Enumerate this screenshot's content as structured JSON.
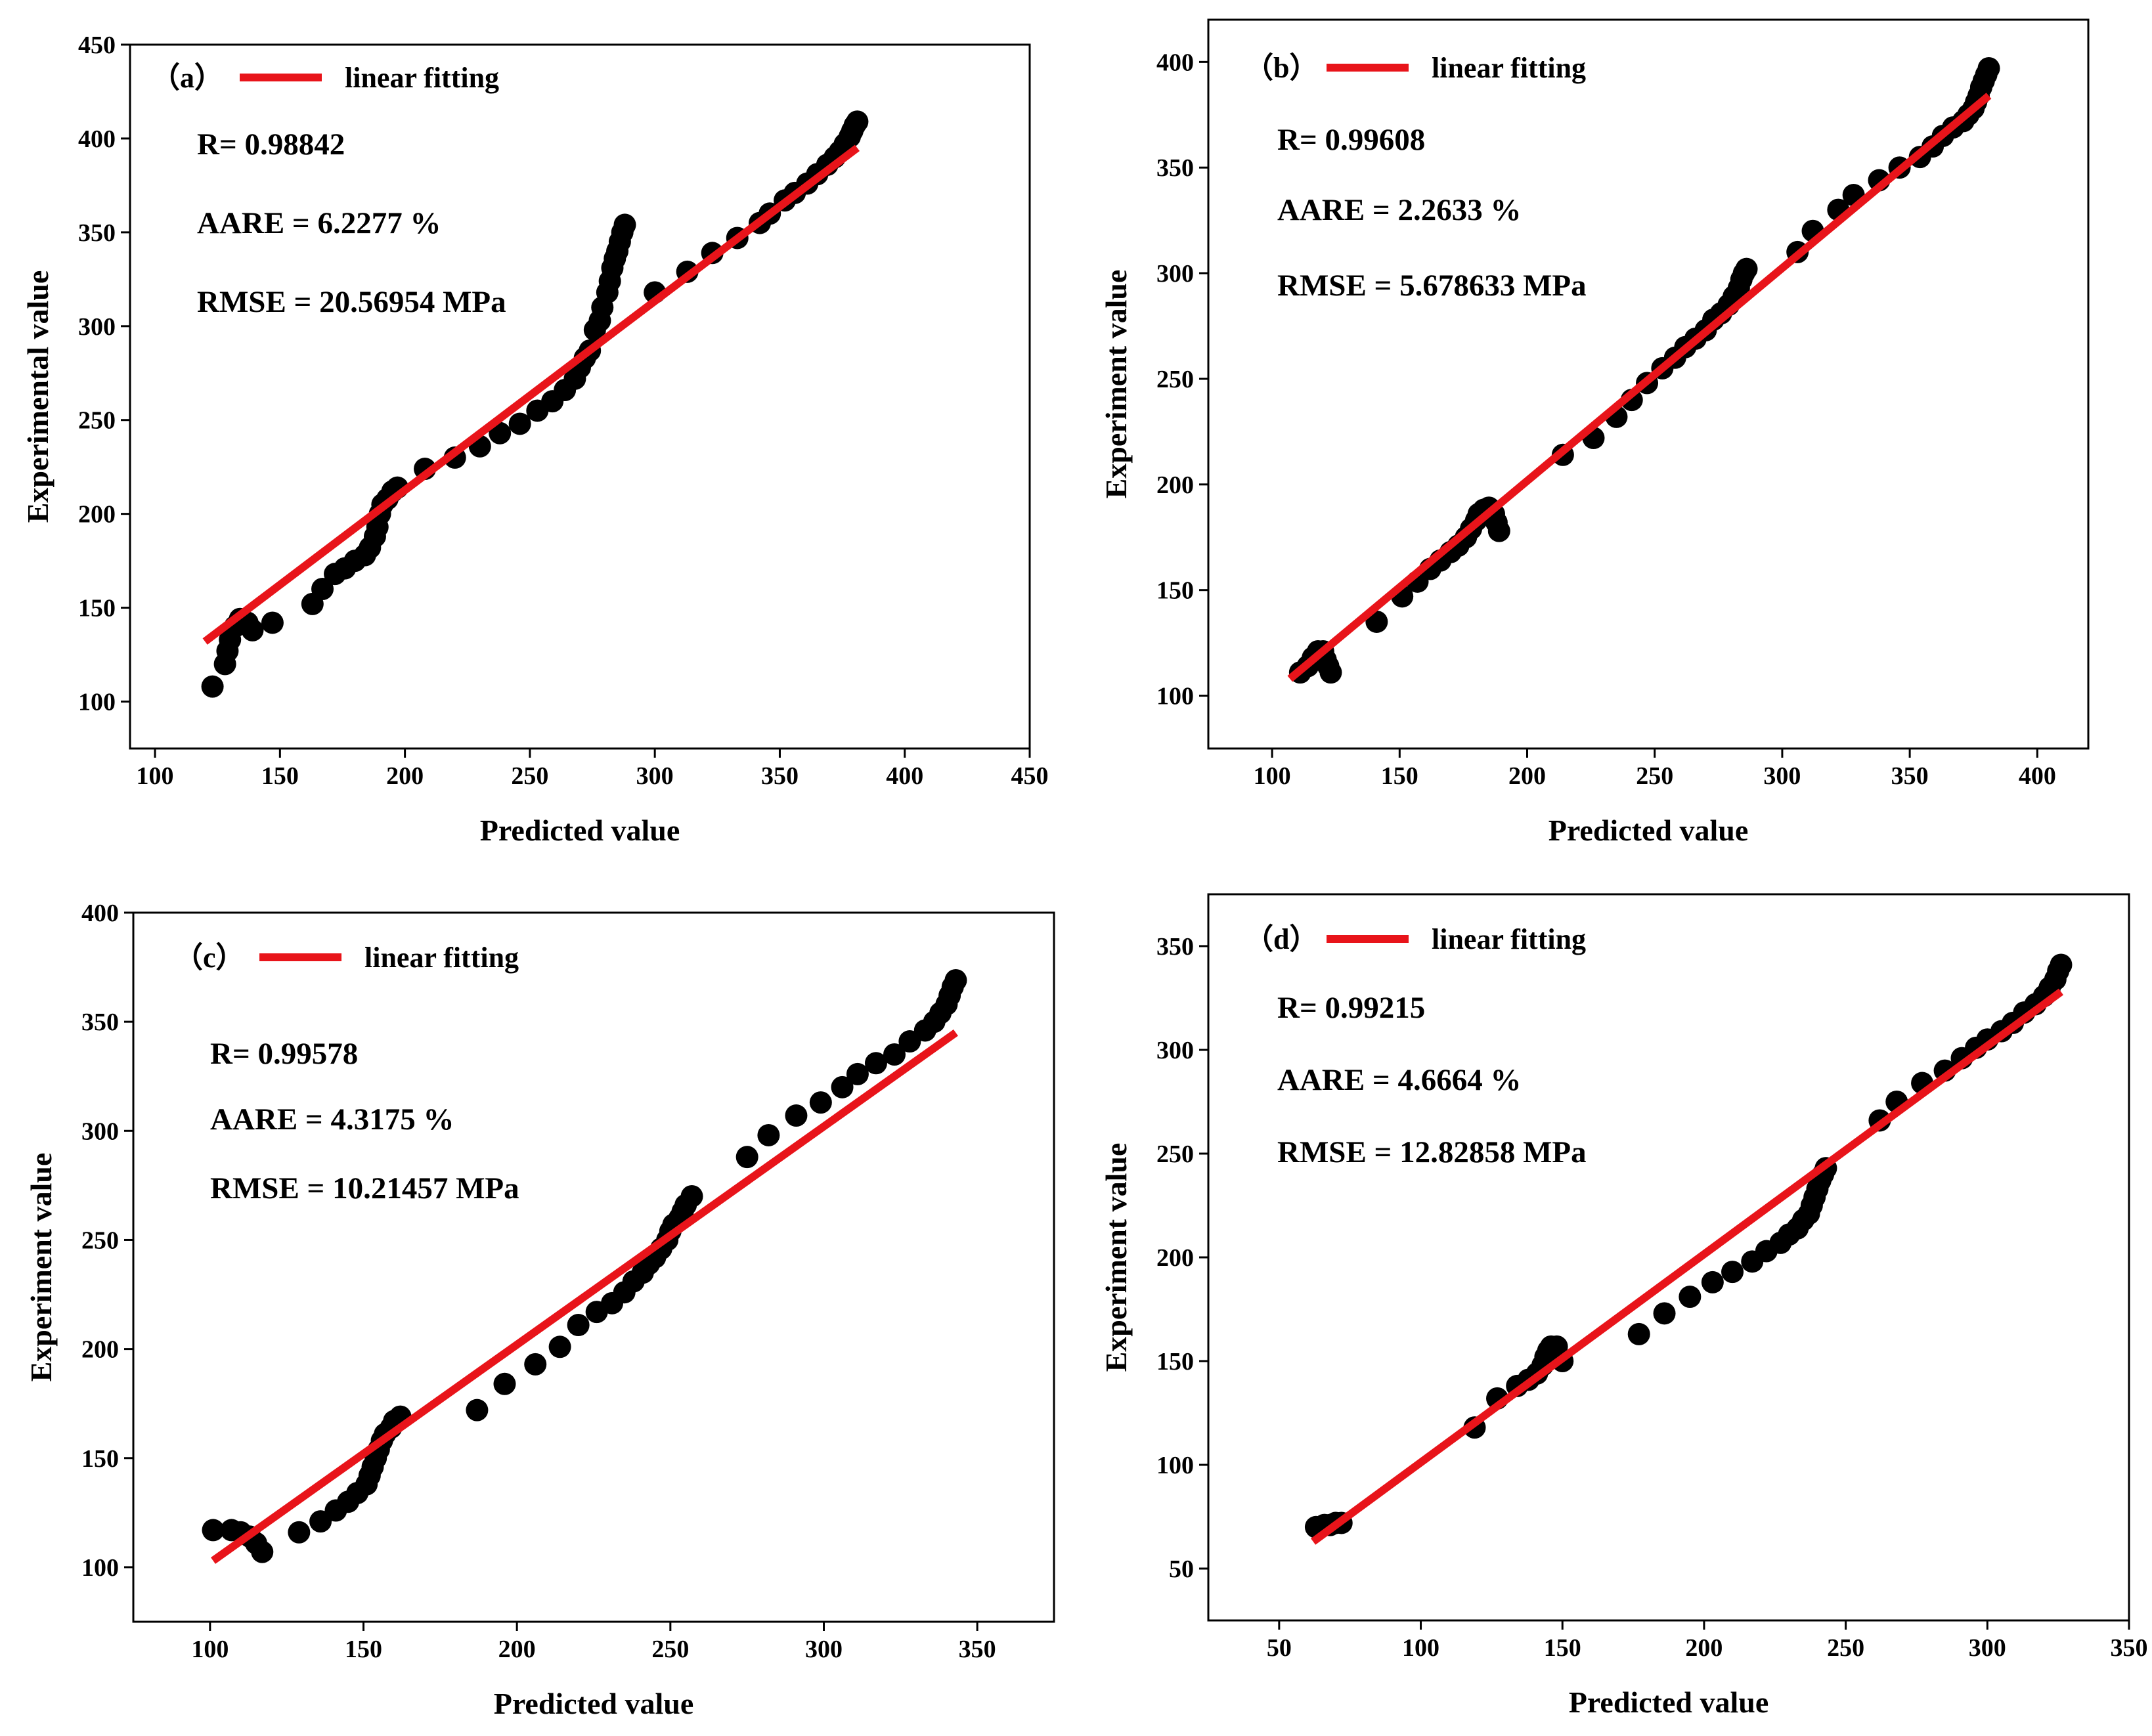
{
  "chart_data": [
    {
      "type": "scatter",
      "panel_label": "（a）",
      "xlabel": "Predicted value",
      "ylabel": "Experimental value",
      "xlim": [
        90,
        450
      ],
      "ylim": [
        75,
        450
      ],
      "xticks": [
        "100",
        "150",
        "200",
        "250",
        "300",
        "350",
        "400",
        "450"
      ],
      "yticks": [
        "100",
        "150",
        "200",
        "250",
        "300",
        "350",
        "400",
        "450"
      ],
      "legend": "linear fitting",
      "legend_position": "top-left",
      "stats": {
        "r": "R= 0.98842",
        "aare": "AARE = 6.2277 %",
        "rmse": "RMSE = 20.56954 MPa"
      },
      "fit_line": {
        "x": [
          120,
          381
        ],
        "y": [
          132,
          395
        ]
      },
      "points": [
        [
          123,
          108
        ],
        [
          128,
          120
        ],
        [
          129,
          127
        ],
        [
          130,
          133
        ],
        [
          132,
          140
        ],
        [
          134,
          144
        ],
        [
          137,
          142
        ],
        [
          139,
          138
        ],
        [
          147,
          142
        ],
        [
          163,
          152
        ],
        [
          167,
          160
        ],
        [
          172,
          168
        ],
        [
          176,
          171
        ],
        [
          180,
          175
        ],
        [
          184,
          178
        ],
        [
          186,
          182
        ],
        [
          188,
          188
        ],
        [
          189,
          193
        ],
        [
          190,
          200
        ],
        [
          191,
          205
        ],
        [
          193,
          208
        ],
        [
          195,
          212
        ],
        [
          197,
          214
        ],
        [
          208,
          224
        ],
        [
          220,
          230
        ],
        [
          230,
          236
        ],
        [
          238,
          243
        ],
        [
          246,
          248
        ],
        [
          253,
          255
        ],
        [
          259,
          260
        ],
        [
          264,
          266
        ],
        [
          268,
          272
        ],
        [
          270,
          278
        ],
        [
          272,
          283
        ],
        [
          274,
          287
        ],
        [
          276,
          298
        ],
        [
          278,
          303
        ],
        [
          279,
          310
        ],
        [
          281,
          318
        ],
        [
          282,
          324
        ],
        [
          283,
          331
        ],
        [
          284,
          336
        ],
        [
          285,
          340
        ],
        [
          286,
          345
        ],
        [
          287,
          350
        ],
        [
          288,
          354
        ],
        [
          300,
          318
        ],
        [
          313,
          329
        ],
        [
          323,
          339
        ],
        [
          333,
          347
        ],
        [
          342,
          355
        ],
        [
          346,
          360
        ],
        [
          352,
          367
        ],
        [
          356,
          371
        ],
        [
          361,
          376
        ],
        [
          365,
          381
        ],
        [
          369,
          386
        ],
        [
          372,
          390
        ],
        [
          374,
          393
        ],
        [
          376,
          397
        ],
        [
          378,
          401
        ],
        [
          379,
          404
        ],
        [
          380,
          407
        ],
        [
          381,
          409
        ]
      ]
    },
    {
      "type": "scatter",
      "panel_label": "（b）",
      "xlabel": "Predicted value",
      "ylabel": "Experiment value",
      "xlim": [
        75,
        420
      ],
      "ylim": [
        75,
        420
      ],
      "xticks": [
        "100",
        "150",
        "200",
        "250",
        "300",
        "350",
        "400"
      ],
      "yticks": [
        "100",
        "150",
        "200",
        "250",
        "300",
        "350",
        "400"
      ],
      "legend": "linear fitting",
      "legend_position": "top-left",
      "stats": {
        "r": "R= 0.99608",
        "aare": "AARE = 2.2633 %",
        "rmse": "RMSE = 5.678633 MPa"
      },
      "fit_line": {
        "x": [
          107,
          381
        ],
        "y": [
          108,
          384
        ]
      },
      "points": [
        [
          111,
          111
        ],
        [
          114,
          114
        ],
        [
          116,
          118
        ],
        [
          118,
          121
        ],
        [
          120,
          121
        ],
        [
          121,
          117
        ],
        [
          122,
          114
        ],
        [
          123,
          111
        ],
        [
          141,
          135
        ],
        [
          151,
          147
        ],
        [
          157,
          154
        ],
        [
          162,
          160
        ],
        [
          166,
          164
        ],
        [
          170,
          168
        ],
        [
          173,
          171
        ],
        [
          176,
          175
        ],
        [
          178,
          179
        ],
        [
          180,
          183
        ],
        [
          181,
          186
        ],
        [
          183,
          188
        ],
        [
          185,
          189
        ],
        [
          187,
          186
        ],
        [
          188,
          182
        ],
        [
          189,
          178
        ],
        [
          214,
          214
        ],
        [
          226,
          222
        ],
        [
          235,
          232
        ],
        [
          241,
          240
        ],
        [
          247,
          248
        ],
        [
          253,
          255
        ],
        [
          258,
          260
        ],
        [
          262,
          265
        ],
        [
          266,
          269
        ],
        [
          270,
          273
        ],
        [
          273,
          278
        ],
        [
          276,
          281
        ],
        [
          279,
          285
        ],
        [
          281,
          289
        ],
        [
          283,
          293
        ],
        [
          284,
          297
        ],
        [
          285,
          300
        ],
        [
          286,
          302
        ],
        [
          306,
          310
        ],
        [
          312,
          320
        ],
        [
          322,
          330
        ],
        [
          328,
          337
        ],
        [
          338,
          344
        ],
        [
          346,
          350
        ],
        [
          354,
          355
        ],
        [
          359,
          360
        ],
        [
          363,
          365
        ],
        [
          367,
          369
        ],
        [
          371,
          372
        ],
        [
          373,
          375
        ],
        [
          375,
          378
        ],
        [
          376,
          381
        ],
        [
          377,
          384
        ],
        [
          378,
          388
        ],
        [
          379,
          391
        ],
        [
          380,
          394
        ],
        [
          381,
          397
        ]
      ]
    },
    {
      "type": "scatter",
      "panel_label": "（c）",
      "xlabel": "Predicted value",
      "ylabel": "Experiment value",
      "xlim": [
        75,
        375
      ],
      "ylim": [
        75,
        400
      ],
      "xticks": [
        "100",
        "150",
        "200",
        "250",
        "300",
        "350"
      ],
      "yticks": [
        "100",
        "150",
        "200",
        "250",
        "300",
        "350",
        "400"
      ],
      "legend": "linear fitting",
      "legend_position": "top-left",
      "stats": {
        "r": "R= 0.99578",
        "aare": "AARE = 4.3175 %",
        "rmse": "RMSE = 10.21457 MPa"
      },
      "fit_line": {
        "x": [
          101,
          343
        ],
        "y": [
          103,
          345
        ]
      },
      "points": [
        [
          101,
          117
        ],
        [
          107,
          117
        ],
        [
          110,
          116
        ],
        [
          113,
          114
        ],
        [
          115,
          111
        ],
        [
          117,
          107
        ],
        [
          129,
          116
        ],
        [
          136,
          121
        ],
        [
          141,
          126
        ],
        [
          145,
          130
        ],
        [
          148,
          134
        ],
        [
          151,
          138
        ],
        [
          152,
          142
        ],
        [
          153,
          146
        ],
        [
          154,
          150
        ],
        [
          155,
          154
        ],
        [
          156,
          158
        ],
        [
          157,
          161
        ],
        [
          159,
          164
        ],
        [
          160,
          167
        ],
        [
          162,
          169
        ],
        [
          187,
          172
        ],
        [
          196,
          184
        ],
        [
          206,
          193
        ],
        [
          214,
          201
        ],
        [
          220,
          211
        ],
        [
          226,
          217
        ],
        [
          231,
          221
        ],
        [
          235,
          226
        ],
        [
          238,
          231
        ],
        [
          241,
          235
        ],
        [
          243,
          239
        ],
        [
          245,
          242
        ],
        [
          247,
          246
        ],
        [
          249,
          250
        ],
        [
          250,
          254
        ],
        [
          251,
          257
        ],
        [
          253,
          260
        ],
        [
          254,
          263
        ],
        [
          255,
          266
        ],
        [
          257,
          270
        ],
        [
          275,
          288
        ],
        [
          282,
          298
        ],
        [
          291,
          307
        ],
        [
          299,
          313
        ],
        [
          306,
          320
        ],
        [
          311,
          326
        ],
        [
          317,
          331
        ],
        [
          323,
          335
        ],
        [
          328,
          341
        ],
        [
          333,
          346
        ],
        [
          336,
          350
        ],
        [
          338,
          354
        ],
        [
          340,
          358
        ],
        [
          341,
          362
        ],
        [
          342,
          366
        ],
        [
          343,
          369
        ]
      ]
    },
    {
      "type": "scatter",
      "panel_label": "（d）",
      "xlabel": "Predicted value",
      "ylabel": "Experiment value",
      "xlim": [
        25,
        350
      ],
      "ylim": [
        25,
        375
      ],
      "xticks": [
        "50",
        "100",
        "150",
        "200",
        "250",
        "300",
        "350"
      ],
      "yticks": [
        "50",
        "100",
        "150",
        "200",
        "250",
        "300",
        "350"
      ],
      "legend": "linear fitting",
      "legend_position": "top-left",
      "stats": {
        "r": "R= 0.99215",
        "aare": "AARE = 4.6664 %",
        "rmse": "RMSE = 12.82858 MPa"
      },
      "fit_line": {
        "x": [
          62,
          326
        ],
        "y": [
          63,
          328
        ]
      },
      "points": [
        [
          63,
          70
        ],
        [
          66,
          71
        ],
        [
          68,
          71
        ],
        [
          70,
          72
        ],
        [
          72,
          72
        ],
        [
          119,
          118
        ],
        [
          127,
          132
        ],
        [
          134,
          138
        ],
        [
          138,
          141
        ],
        [
          141,
          144
        ],
        [
          143,
          148
        ],
        [
          144,
          152
        ],
        [
          145,
          155
        ],
        [
          146,
          157
        ],
        [
          148,
          157
        ],
        [
          150,
          150
        ],
        [
          177,
          163
        ],
        [
          186,
          173
        ],
        [
          195,
          181
        ],
        [
          203,
          188
        ],
        [
          210,
          193
        ],
        [
          217,
          198
        ],
        [
          222,
          203
        ],
        [
          227,
          207
        ],
        [
          230,
          211
        ],
        [
          233,
          214
        ],
        [
          235,
          218
        ],
        [
          237,
          221
        ],
        [
          238,
          225
        ],
        [
          239,
          229
        ],
        [
          240,
          233
        ],
        [
          241,
          237
        ],
        [
          242,
          240
        ],
        [
          243,
          243
        ],
        [
          262,
          266
        ],
        [
          268,
          275
        ],
        [
          277,
          284
        ],
        [
          285,
          290
        ],
        [
          291,
          296
        ],
        [
          296,
          301
        ],
        [
          300,
          305
        ],
        [
          305,
          309
        ],
        [
          309,
          313
        ],
        [
          313,
          318
        ],
        [
          317,
          322
        ],
        [
          320,
          326
        ],
        [
          322,
          330
        ],
        [
          324,
          334
        ],
        [
          325,
          338
        ],
        [
          326,
          341
        ]
      ]
    }
  ]
}
